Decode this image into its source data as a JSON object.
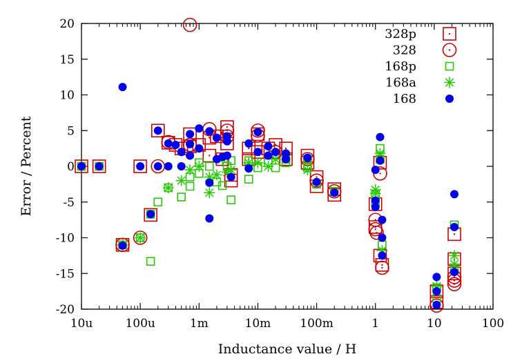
{
  "chart_data": {
    "type": "scatter",
    "xlabel": "Inductance value / H",
    "ylabel": "Error / Percent",
    "x_scale": "log",
    "xlim": [
      1e-05,
      100
    ],
    "ylim": [
      -20,
      20
    ],
    "x_ticks": [
      {
        "v": 1e-05,
        "label": "10u"
      },
      {
        "v": 0.0001,
        "label": "100u"
      },
      {
        "v": 0.001,
        "label": "1m"
      },
      {
        "v": 0.01,
        "label": "10m"
      },
      {
        "v": 0.1,
        "label": "100m"
      },
      {
        "v": 1,
        "label": "1"
      },
      {
        "v": 10,
        "label": "10"
      },
      {
        "v": 100,
        "label": "100"
      }
    ],
    "y_ticks": [
      {
        "v": 20,
        "label": "20"
      },
      {
        "v": 15,
        "label": "15"
      },
      {
        "v": 10,
        "label": "10"
      },
      {
        "v": 5,
        "label": "5"
      },
      {
        "v": 0,
        "label": "0"
      },
      {
        "v": -5,
        "label": "-5"
      },
      {
        "v": -10,
        "label": "-10"
      },
      {
        "v": -15,
        "label": "-15"
      },
      {
        "v": -20,
        "label": "-20"
      }
    ],
    "grid": false,
    "legend_position": "top-right",
    "series": [
      {
        "name": "328p",
        "marker": "square-dot",
        "color": "#cc0000",
        "points": [
          [
            1e-05,
            0
          ],
          [
            2e-05,
            0
          ],
          [
            5e-05,
            -11
          ],
          [
            0.0001,
            0
          ],
          [
            0.00015,
            -6.8
          ],
          [
            0.0002,
            5
          ],
          [
            0.0003,
            3.3
          ],
          [
            0.0004,
            3
          ],
          [
            0.0005,
            2.5
          ],
          [
            0.0007,
            4.5
          ],
          [
            0.0007,
            2.8
          ],
          [
            0.001,
            3
          ],
          [
            0.0015,
            4
          ],
          [
            0.0015,
            1.5
          ],
          [
            0.002,
            4.2
          ],
          [
            0.0025,
            1
          ],
          [
            0.003,
            5.5
          ],
          [
            0.003,
            3.2
          ],
          [
            0.0035,
            -1.2
          ],
          [
            0.0035,
            -2
          ],
          [
            0.007,
            2.5
          ],
          [
            0.007,
            1
          ],
          [
            0.01,
            4.5
          ],
          [
            0.01,
            2
          ],
          [
            0.015,
            2.5
          ],
          [
            0.02,
            3
          ],
          [
            0.03,
            2.5
          ],
          [
            0.03,
            1
          ],
          [
            0.07,
            1.5
          ],
          [
            0.07,
            0.5
          ],
          [
            0.1,
            -1.5
          ],
          [
            0.1,
            -2.8
          ],
          [
            0.2,
            -3.2
          ],
          [
            0.2,
            -4
          ],
          [
            1,
            -5.3
          ],
          [
            1,
            -8.5
          ],
          [
            1.2,
            0.5
          ],
          [
            1.2,
            -12.5
          ],
          [
            1.3,
            -13.8
          ],
          [
            11,
            -17.5
          ],
          [
            11,
            -19
          ],
          [
            22,
            -9.5
          ],
          [
            22,
            -13
          ],
          [
            22,
            -15
          ]
        ]
      },
      {
        "name": "328",
        "marker": "circle-dot",
        "color": "#cc0000",
        "points": [
          [
            0.0007,
            19.8
          ],
          [
            5e-05,
            -11
          ],
          [
            0.0001,
            -10
          ],
          [
            0.0002,
            0
          ],
          [
            0.0003,
            3.4
          ],
          [
            0.0007,
            3
          ],
          [
            0.0015,
            5.2
          ],
          [
            0.003,
            5
          ],
          [
            0.003,
            4.2
          ],
          [
            0.01,
            5
          ],
          [
            0.01,
            4.3
          ],
          [
            0.02,
            2
          ],
          [
            0.07,
            1
          ],
          [
            0.1,
            -2
          ],
          [
            0.2,
            -3.5
          ],
          [
            1,
            -7.5
          ],
          [
            1,
            -8.8
          ],
          [
            1.05,
            -9.3
          ],
          [
            1.2,
            -1
          ],
          [
            1.3,
            -14.2
          ],
          [
            11,
            -19.5
          ],
          [
            22,
            -15.5
          ],
          [
            22,
            -16
          ],
          [
            22,
            -16.5
          ]
        ]
      },
      {
        "name": "168p",
        "marker": "square",
        "color": "#22cc00",
        "points": [
          [
            1e-05,
            0
          ],
          [
            2e-05,
            0
          ],
          [
            5e-05,
            -11
          ],
          [
            0.0001,
            -10
          ],
          [
            0.00015,
            -13.3
          ],
          [
            0.00015,
            -6.7
          ],
          [
            0.0002,
            -5
          ],
          [
            0.0003,
            -3
          ],
          [
            0.0005,
            -4.3
          ],
          [
            0.0007,
            -2.8
          ],
          [
            0.0007,
            -1.5
          ],
          [
            0.001,
            -1
          ],
          [
            0.001,
            0.5
          ],
          [
            0.0015,
            0
          ],
          [
            0.002,
            -2.2
          ],
          [
            0.0025,
            -2.7
          ],
          [
            0.003,
            0
          ],
          [
            0.0035,
            -4.7
          ],
          [
            0.0035,
            0.8
          ],
          [
            0.007,
            -1.8
          ],
          [
            0.007,
            0.8
          ],
          [
            0.01,
            -0.2
          ],
          [
            0.015,
            0.5
          ],
          [
            0.02,
            -0.2
          ],
          [
            0.03,
            1
          ],
          [
            0.03,
            0.5
          ],
          [
            0.07,
            -0.2
          ],
          [
            0.07,
            1
          ],
          [
            0.1,
            -2.5
          ],
          [
            0.2,
            -3.5
          ],
          [
            1,
            -5
          ],
          [
            1,
            -4
          ],
          [
            1.2,
            2.5
          ],
          [
            1.2,
            1
          ],
          [
            1.3,
            -11
          ],
          [
            11,
            -17
          ],
          [
            11,
            -18.5
          ],
          [
            22,
            -8.2
          ],
          [
            22,
            -14.5
          ]
        ]
      },
      {
        "name": "168a",
        "marker": "asterisk",
        "color": "#22cc00",
        "points": [
          [
            5e-05,
            -11
          ],
          [
            0.0001,
            -10
          ],
          [
            0.0003,
            -3
          ],
          [
            0.0005,
            -2
          ],
          [
            0.0007,
            -0.5
          ],
          [
            0.001,
            0
          ],
          [
            0.0015,
            -3.7
          ],
          [
            0.0015,
            -1.5
          ],
          [
            0.002,
            -1.2
          ],
          [
            0.0025,
            1
          ],
          [
            0.003,
            -0.8
          ],
          [
            0.0035,
            -0.5
          ],
          [
            0.007,
            0.5
          ],
          [
            0.01,
            0.5
          ],
          [
            0.015,
            0
          ],
          [
            0.02,
            1
          ],
          [
            0.07,
            -0.5
          ],
          [
            1,
            -3.3
          ],
          [
            1,
            -3.8
          ],
          [
            1.2,
            1.8
          ],
          [
            1.3,
            -11.8
          ],
          [
            11,
            -16.8
          ],
          [
            22,
            -12.5
          ],
          [
            22,
            -13.7
          ]
        ]
      },
      {
        "name": "168",
        "marker": "filled-circle",
        "color": "#0000ee",
        "points": [
          [
            1e-05,
            0
          ],
          [
            2e-05,
            0
          ],
          [
            5e-05,
            11.1
          ],
          [
            5e-05,
            -11.1
          ],
          [
            0.0001,
            0
          ],
          [
            0.00015,
            -6.7
          ],
          [
            0.0002,
            5
          ],
          [
            0.0002,
            0
          ],
          [
            0.0003,
            3.2
          ],
          [
            0.0003,
            0
          ],
          [
            0.0004,
            3
          ],
          [
            0.0005,
            2
          ],
          [
            0.0005,
            0
          ],
          [
            0.0007,
            4.5
          ],
          [
            0.0007,
            3.1
          ],
          [
            0.0007,
            1.5
          ],
          [
            0.001,
            5.3
          ],
          [
            0.001,
            2.5
          ],
          [
            0.0015,
            4.9
          ],
          [
            0.0015,
            -2.3
          ],
          [
            0.0015,
            -7.3
          ],
          [
            0.002,
            4
          ],
          [
            0.002,
            1
          ],
          [
            0.0025,
            1.3
          ],
          [
            0.003,
            4.2
          ],
          [
            0.003,
            3.5
          ],
          [
            0.003,
            1.5
          ],
          [
            0.0035,
            -1.5
          ],
          [
            0.007,
            3.2
          ],
          [
            0.007,
            -0.3
          ],
          [
            0.01,
            4.8
          ],
          [
            0.01,
            2
          ],
          [
            0.015,
            2.8
          ],
          [
            0.015,
            1.5
          ],
          [
            0.02,
            2
          ],
          [
            0.03,
            1.8
          ],
          [
            0.03,
            1
          ],
          [
            0.07,
            1.2
          ],
          [
            0.1,
            -2.2
          ],
          [
            0.2,
            -3.7
          ],
          [
            1,
            -0.5
          ],
          [
            1,
            -4.8
          ],
          [
            1,
            -5.7
          ],
          [
            1.2,
            4.1
          ],
          [
            1.2,
            0.8
          ],
          [
            1.3,
            -7.5
          ],
          [
            1.3,
            -10
          ],
          [
            1.3,
            -12.5
          ],
          [
            11,
            -15.5
          ],
          [
            11,
            -17.5
          ],
          [
            11,
            -19.4
          ],
          [
            22,
            -3.9
          ],
          [
            22,
            -8.5
          ],
          [
            22,
            -14.8
          ]
        ]
      }
    ]
  }
}
